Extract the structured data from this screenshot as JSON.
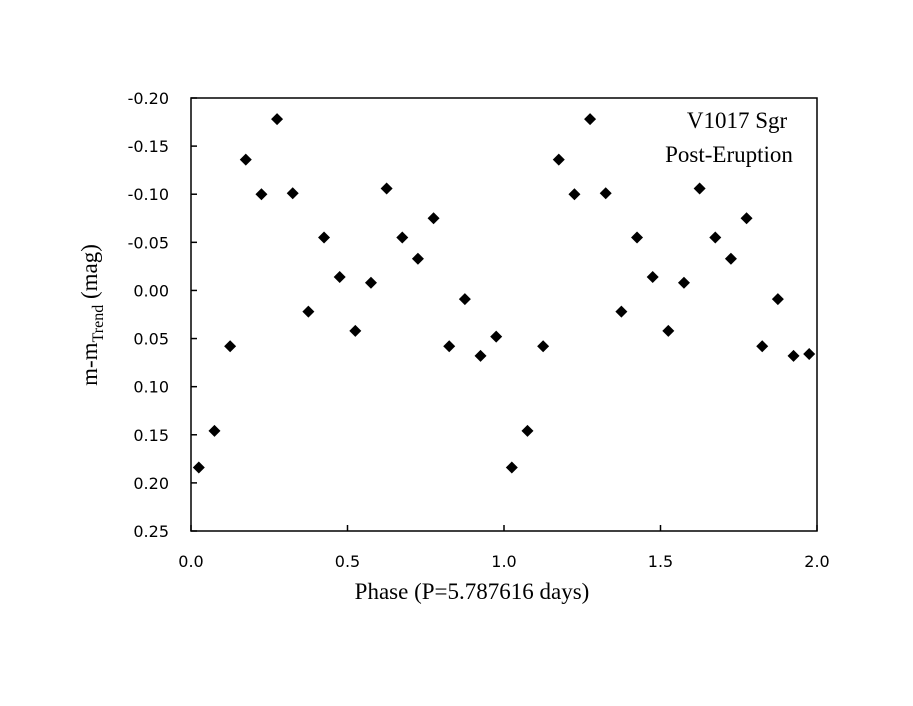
{
  "chart_data": {
    "type": "scatter",
    "xlabel": "Phase (P=5.787616 days)",
    "ylabel_main": "m-m",
    "ylabel_sub": "Trend",
    "ylabel_unit": " (mag)",
    "annotation": [
      "V1017 Sgr",
      "Post-Eruption"
    ],
    "xlim": [
      0.0,
      2.0
    ],
    "ylim": [
      -0.2,
      0.25
    ],
    "y_inverted": true,
    "x_ticks": [
      "0.0",
      "0.5",
      "1.0",
      "1.5",
      "2.0"
    ],
    "y_ticks": [
      "-0.20",
      "-0.15",
      "-0.10",
      "-0.05",
      "0.00",
      "0.05",
      "0.10",
      "0.15",
      "0.20",
      "0.25"
    ],
    "grid": false,
    "marker": "diamond",
    "marker_color": "#000000",
    "x": [
      0.025,
      0.075,
      0.125,
      0.175,
      0.225,
      0.275,
      0.325,
      0.375,
      0.425,
      0.475,
      0.525,
      0.575,
      0.625,
      0.675,
      0.725,
      0.775,
      0.825,
      0.875,
      0.925,
      0.975,
      1.025,
      1.075,
      1.125,
      1.175,
      1.225,
      1.275,
      1.325,
      1.375,
      1.425,
      1.475,
      1.525,
      1.575,
      1.625,
      1.675,
      1.725,
      1.775,
      1.825,
      1.875,
      1.925,
      1.975
    ],
    "y": [
      0.184,
      0.146,
      0.058,
      -0.136,
      -0.1,
      -0.178,
      -0.101,
      0.022,
      -0.055,
      -0.014,
      0.042,
      -0.008,
      -0.106,
      -0.055,
      -0.033,
      -0.075,
      0.058,
      0.009,
      0.068,
      0.048,
      0.184,
      0.146,
      0.058,
      -0.136,
      -0.1,
      -0.178,
      -0.101,
      0.022,
      -0.055,
      -0.014,
      0.042,
      -0.008,
      -0.106,
      -0.055,
      -0.033,
      -0.075,
      0.058,
      0.009,
      0.068,
      0.066
    ]
  }
}
